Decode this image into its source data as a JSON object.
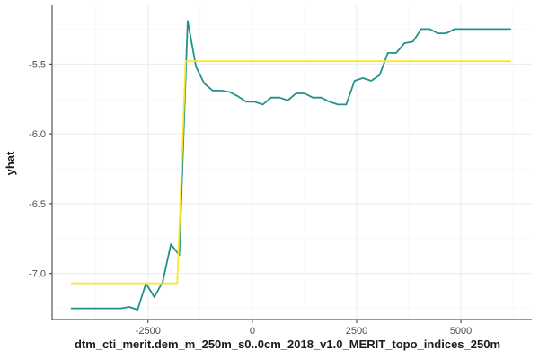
{
  "chart_data": {
    "type": "line",
    "xlabel": "dtm_cti_merit.dem_m_250m_s0..0cm_2018_v1.0_MERIT_topo_indices_250m",
    "ylabel": "yhat",
    "xlim": [
      -4800,
      6700
    ],
    "ylim": [
      -7.33,
      -5.08
    ],
    "x_ticks": [
      -2500,
      0,
      2500,
      5000
    ],
    "x_tick_labels": [
      "-2500",
      "0",
      "2500",
      "5000"
    ],
    "y_ticks": [
      -7.0,
      -6.5,
      -6.0,
      -5.5
    ],
    "y_tick_labels": [
      "-7.0",
      "-6.5",
      "-6.0",
      "-5.5"
    ],
    "grid": true,
    "series": [
      {
        "color": "#21918c",
        "x": [
          -4350,
          -3950,
          -3550,
          -3150,
          -2950,
          -2750,
          -2550,
          -2350,
          -2150,
          -1950,
          -1750,
          -1550,
          -1350,
          -1150,
          -950,
          -750,
          -550,
          -350,
          -150,
          50,
          250,
          450,
          650,
          850,
          1050,
          1250,
          1450,
          1650,
          1850,
          2050,
          2250,
          2450,
          2650,
          2850,
          3050,
          3250,
          3450,
          3650,
          3850,
          4050,
          4250,
          4450,
          4650,
          4850,
          5050,
          5250,
          6200
        ],
        "y": [
          -7.25,
          -7.25,
          -7.25,
          -7.25,
          -7.24,
          -7.26,
          -7.07,
          -7.17,
          -7.06,
          -6.79,
          -6.87,
          -5.19,
          -5.52,
          -5.64,
          -5.69,
          -5.69,
          -5.7,
          -5.73,
          -5.77,
          -5.77,
          -5.79,
          -5.74,
          -5.74,
          -5.76,
          -5.71,
          -5.71,
          -5.74,
          -5.74,
          -5.77,
          -5.79,
          -5.79,
          -5.62,
          -5.6,
          -5.62,
          -5.58,
          -5.42,
          -5.42,
          -5.35,
          -5.34,
          -5.25,
          -5.25,
          -5.28,
          -5.28,
          -5.25,
          -5.25,
          -5.25,
          -5.25
        ]
      },
      {
        "color": "#fde725",
        "x": [
          -4350,
          -1800,
          -1600,
          6200
        ],
        "y": [
          -7.07,
          -7.07,
          -5.48,
          -5.48
        ]
      }
    ]
  }
}
